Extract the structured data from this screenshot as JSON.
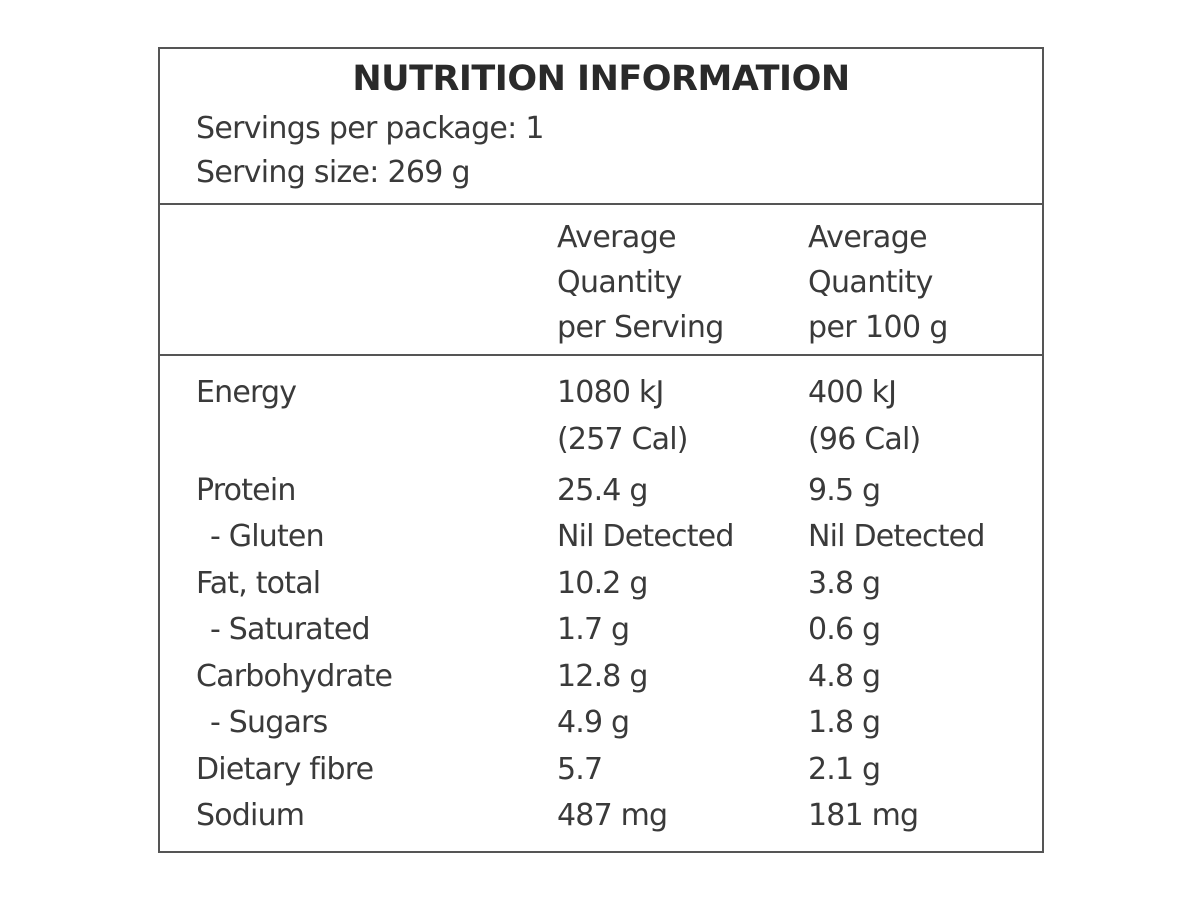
{
  "panel": {
    "title": "NUTRITION INFORMATION",
    "servings_per_package": "Servings per package: 1",
    "serving_size": "Serving size: 269 g"
  },
  "columns": {
    "per_serving": [
      "Average",
      "Quantity",
      "per Serving"
    ],
    "per_100g": [
      "Average",
      "Quantity",
      "per 100 g"
    ]
  },
  "rows": {
    "energy": {
      "label": "Energy",
      "per_serving": "1080 kJ",
      "per_serving_cal": "(257 Cal)",
      "per_100g": "400 kJ",
      "per_100g_cal": "(96 Cal)"
    },
    "protein": {
      "label": "Protein",
      "per_serving": "25.4 g",
      "per_100g": "9.5 g"
    },
    "gluten": {
      "label": "- Gluten",
      "per_serving": "Nil Detected",
      "per_100g": "Nil Detected"
    },
    "fat_total": {
      "label": "Fat, total",
      "per_serving": "10.2 g",
      "per_100g": "3.8 g"
    },
    "saturated": {
      "label": "- Saturated",
      "per_serving": "1.7 g",
      "per_100g": "0.6 g"
    },
    "carbohydrate": {
      "label": "Carbohydrate",
      "per_serving": "12.8 g",
      "per_100g": "4.8 g"
    },
    "sugars": {
      "label": "- Sugars",
      "per_serving": "4.9 g",
      "per_100g": "1.8 g"
    },
    "dietary_fibre": {
      "label": "Dietary fibre",
      "per_serving": "5.7",
      "per_100g": "2.1 g"
    },
    "sodium": {
      "label": "Sodium",
      "per_serving": "487 mg",
      "per_100g": "181 mg"
    }
  }
}
